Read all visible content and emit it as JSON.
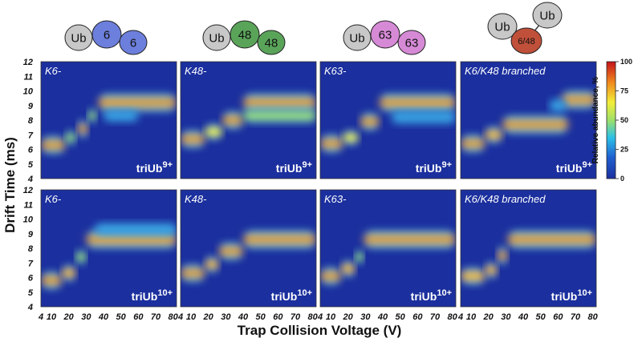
{
  "chart_data": {
    "type": "heatmap",
    "ylabel": "Drift Time (ms)",
    "xlabel": "Trap Collision Voltage (V)",
    "x_ticks": [
      "4",
      "10",
      "20",
      "30",
      "40",
      "50",
      "60",
      "70",
      "80"
    ],
    "y_ticks": [
      "4",
      "5",
      "6",
      "7",
      "8",
      "9",
      "10",
      "11",
      "12"
    ],
    "xlim": [
      4,
      82
    ],
    "ylim": [
      4,
      12
    ],
    "colorbar": {
      "label": "Relative abundance, %",
      "ticks": [
        "0",
        "25",
        "50",
        "75",
        "100"
      ],
      "range": [
        0,
        100
      ]
    },
    "linkage_icons": [
      {
        "labels": [
          "Ub",
          "6",
          "6"
        ],
        "colors": [
          "#c8c8c8",
          "#6d7fdc",
          "#6d7fdc"
        ]
      },
      {
        "labels": [
          "Ub",
          "48",
          "48"
        ],
        "colors": [
          "#c8c8c8",
          "#5aa45a",
          "#5aa45a"
        ]
      },
      {
        "labels": [
          "Ub",
          "63",
          "63"
        ],
        "colors": [
          "#c8c8c8",
          "#d68ad6",
          "#d68ad6"
        ]
      },
      {
        "labels": [
          "Ub",
          "Ub",
          "6/48"
        ],
        "colors": [
          "#c8c8c8",
          "#c8c8c8",
          "#c0503a"
        ]
      }
    ],
    "panels": [
      {
        "row": 0,
        "col": 0,
        "title": "K6-",
        "species": "triUb",
        "charge": "9+",
        "features": [
          {
            "x0": 4,
            "x1": 18,
            "y": 6.3,
            "intensity": 0.95
          },
          {
            "x0": 18,
            "x1": 24,
            "y": 6.8,
            "intensity": 0.5
          },
          {
            "x0": 25,
            "x1": 31,
            "y": 7.4,
            "intensity": 1.0
          },
          {
            "x0": 31,
            "x1": 36,
            "y": 8.3,
            "intensity": 0.45
          },
          {
            "x0": 37,
            "x1": 82,
            "y": 9.2,
            "intensity": 1.0
          },
          {
            "x0": 40,
            "x1": 60,
            "y": 8.3,
            "intensity": 0.15
          }
        ]
      },
      {
        "row": 0,
        "col": 1,
        "title": "K48-",
        "species": "triUb",
        "charge": "9+",
        "features": [
          {
            "x0": 4,
            "x1": 18,
            "y": 6.7,
            "intensity": 0.9
          },
          {
            "x0": 18,
            "x1": 28,
            "y": 7.2,
            "intensity": 0.7
          },
          {
            "x0": 28,
            "x1": 40,
            "y": 8.0,
            "intensity": 0.95
          },
          {
            "x0": 40,
            "x1": 82,
            "y": 9.2,
            "intensity": 1.0
          },
          {
            "x0": 40,
            "x1": 82,
            "y": 8.3,
            "intensity": 0.45
          }
        ]
      },
      {
        "row": 0,
        "col": 2,
        "title": "K63-",
        "species": "triUb",
        "charge": "9+",
        "features": [
          {
            "x0": 4,
            "x1": 17,
            "y": 6.4,
            "intensity": 0.95
          },
          {
            "x0": 17,
            "x1": 26,
            "y": 6.8,
            "intensity": 0.55
          },
          {
            "x0": 27,
            "x1": 38,
            "y": 7.9,
            "intensity": 0.9
          },
          {
            "x0": 38,
            "x1": 82,
            "y": 9.2,
            "intensity": 1.0
          },
          {
            "x0": 45,
            "x1": 82,
            "y": 8.2,
            "intensity": 0.3
          }
        ]
      },
      {
        "row": 0,
        "col": 3,
        "title": "K6/K48 branched",
        "species": "triUb",
        "charge": "9+",
        "features": [
          {
            "x0": 4,
            "x1": 18,
            "y": 6.4,
            "intensity": 0.9
          },
          {
            "x0": 18,
            "x1": 28,
            "y": 7.0,
            "intensity": 0.8
          },
          {
            "x0": 28,
            "x1": 66,
            "y": 7.7,
            "intensity": 1.0
          },
          {
            "x0": 62,
            "x1": 82,
            "y": 9.4,
            "intensity": 1.0
          },
          {
            "x0": 55,
            "x1": 65,
            "y": 9.0,
            "intensity": 0.3
          }
        ]
      },
      {
        "row": 1,
        "col": 0,
        "title": "K6-",
        "species": "triUb",
        "charge": "10+",
        "features": [
          {
            "x0": 4,
            "x1": 16,
            "y": 5.8,
            "intensity": 0.95
          },
          {
            "x0": 16,
            "x1": 24,
            "y": 6.3,
            "intensity": 0.8
          },
          {
            "x0": 24,
            "x1": 30,
            "y": 7.4,
            "intensity": 0.5
          },
          {
            "x0": 30,
            "x1": 82,
            "y": 8.6,
            "intensity": 1.0
          },
          {
            "x0": 35,
            "x1": 82,
            "y": 9.3,
            "intensity": 0.2
          }
        ]
      },
      {
        "row": 1,
        "col": 1,
        "title": "K48-",
        "species": "triUb",
        "charge": "10+",
        "features": [
          {
            "x0": 4,
            "x1": 18,
            "y": 6.3,
            "intensity": 0.9
          },
          {
            "x0": 18,
            "x1": 26,
            "y": 6.9,
            "intensity": 0.75
          },
          {
            "x0": 26,
            "x1": 40,
            "y": 7.8,
            "intensity": 0.9
          },
          {
            "x0": 40,
            "x1": 82,
            "y": 8.6,
            "intensity": 1.0
          }
        ]
      },
      {
        "row": 1,
        "col": 2,
        "title": "K63-",
        "species": "triUb",
        "charge": "10+",
        "features": [
          {
            "x0": 4,
            "x1": 16,
            "y": 6.1,
            "intensity": 0.9
          },
          {
            "x0": 16,
            "x1": 24,
            "y": 6.6,
            "intensity": 0.8
          },
          {
            "x0": 24,
            "x1": 29,
            "y": 7.4,
            "intensity": 0.4
          },
          {
            "x0": 29,
            "x1": 82,
            "y": 8.6,
            "intensity": 1.0
          }
        ]
      },
      {
        "row": 1,
        "col": 3,
        "title": "K6/K48 branched",
        "species": "triUb",
        "charge": "10+",
        "features": [
          {
            "x0": 4,
            "x1": 18,
            "y": 6.1,
            "intensity": 0.85
          },
          {
            "x0": 18,
            "x1": 25,
            "y": 6.5,
            "intensity": 0.8
          },
          {
            "x0": 25,
            "x1": 31,
            "y": 7.5,
            "intensity": 1.0
          },
          {
            "x0": 31,
            "x1": 82,
            "y": 8.6,
            "intensity": 1.0
          }
        ]
      }
    ]
  }
}
